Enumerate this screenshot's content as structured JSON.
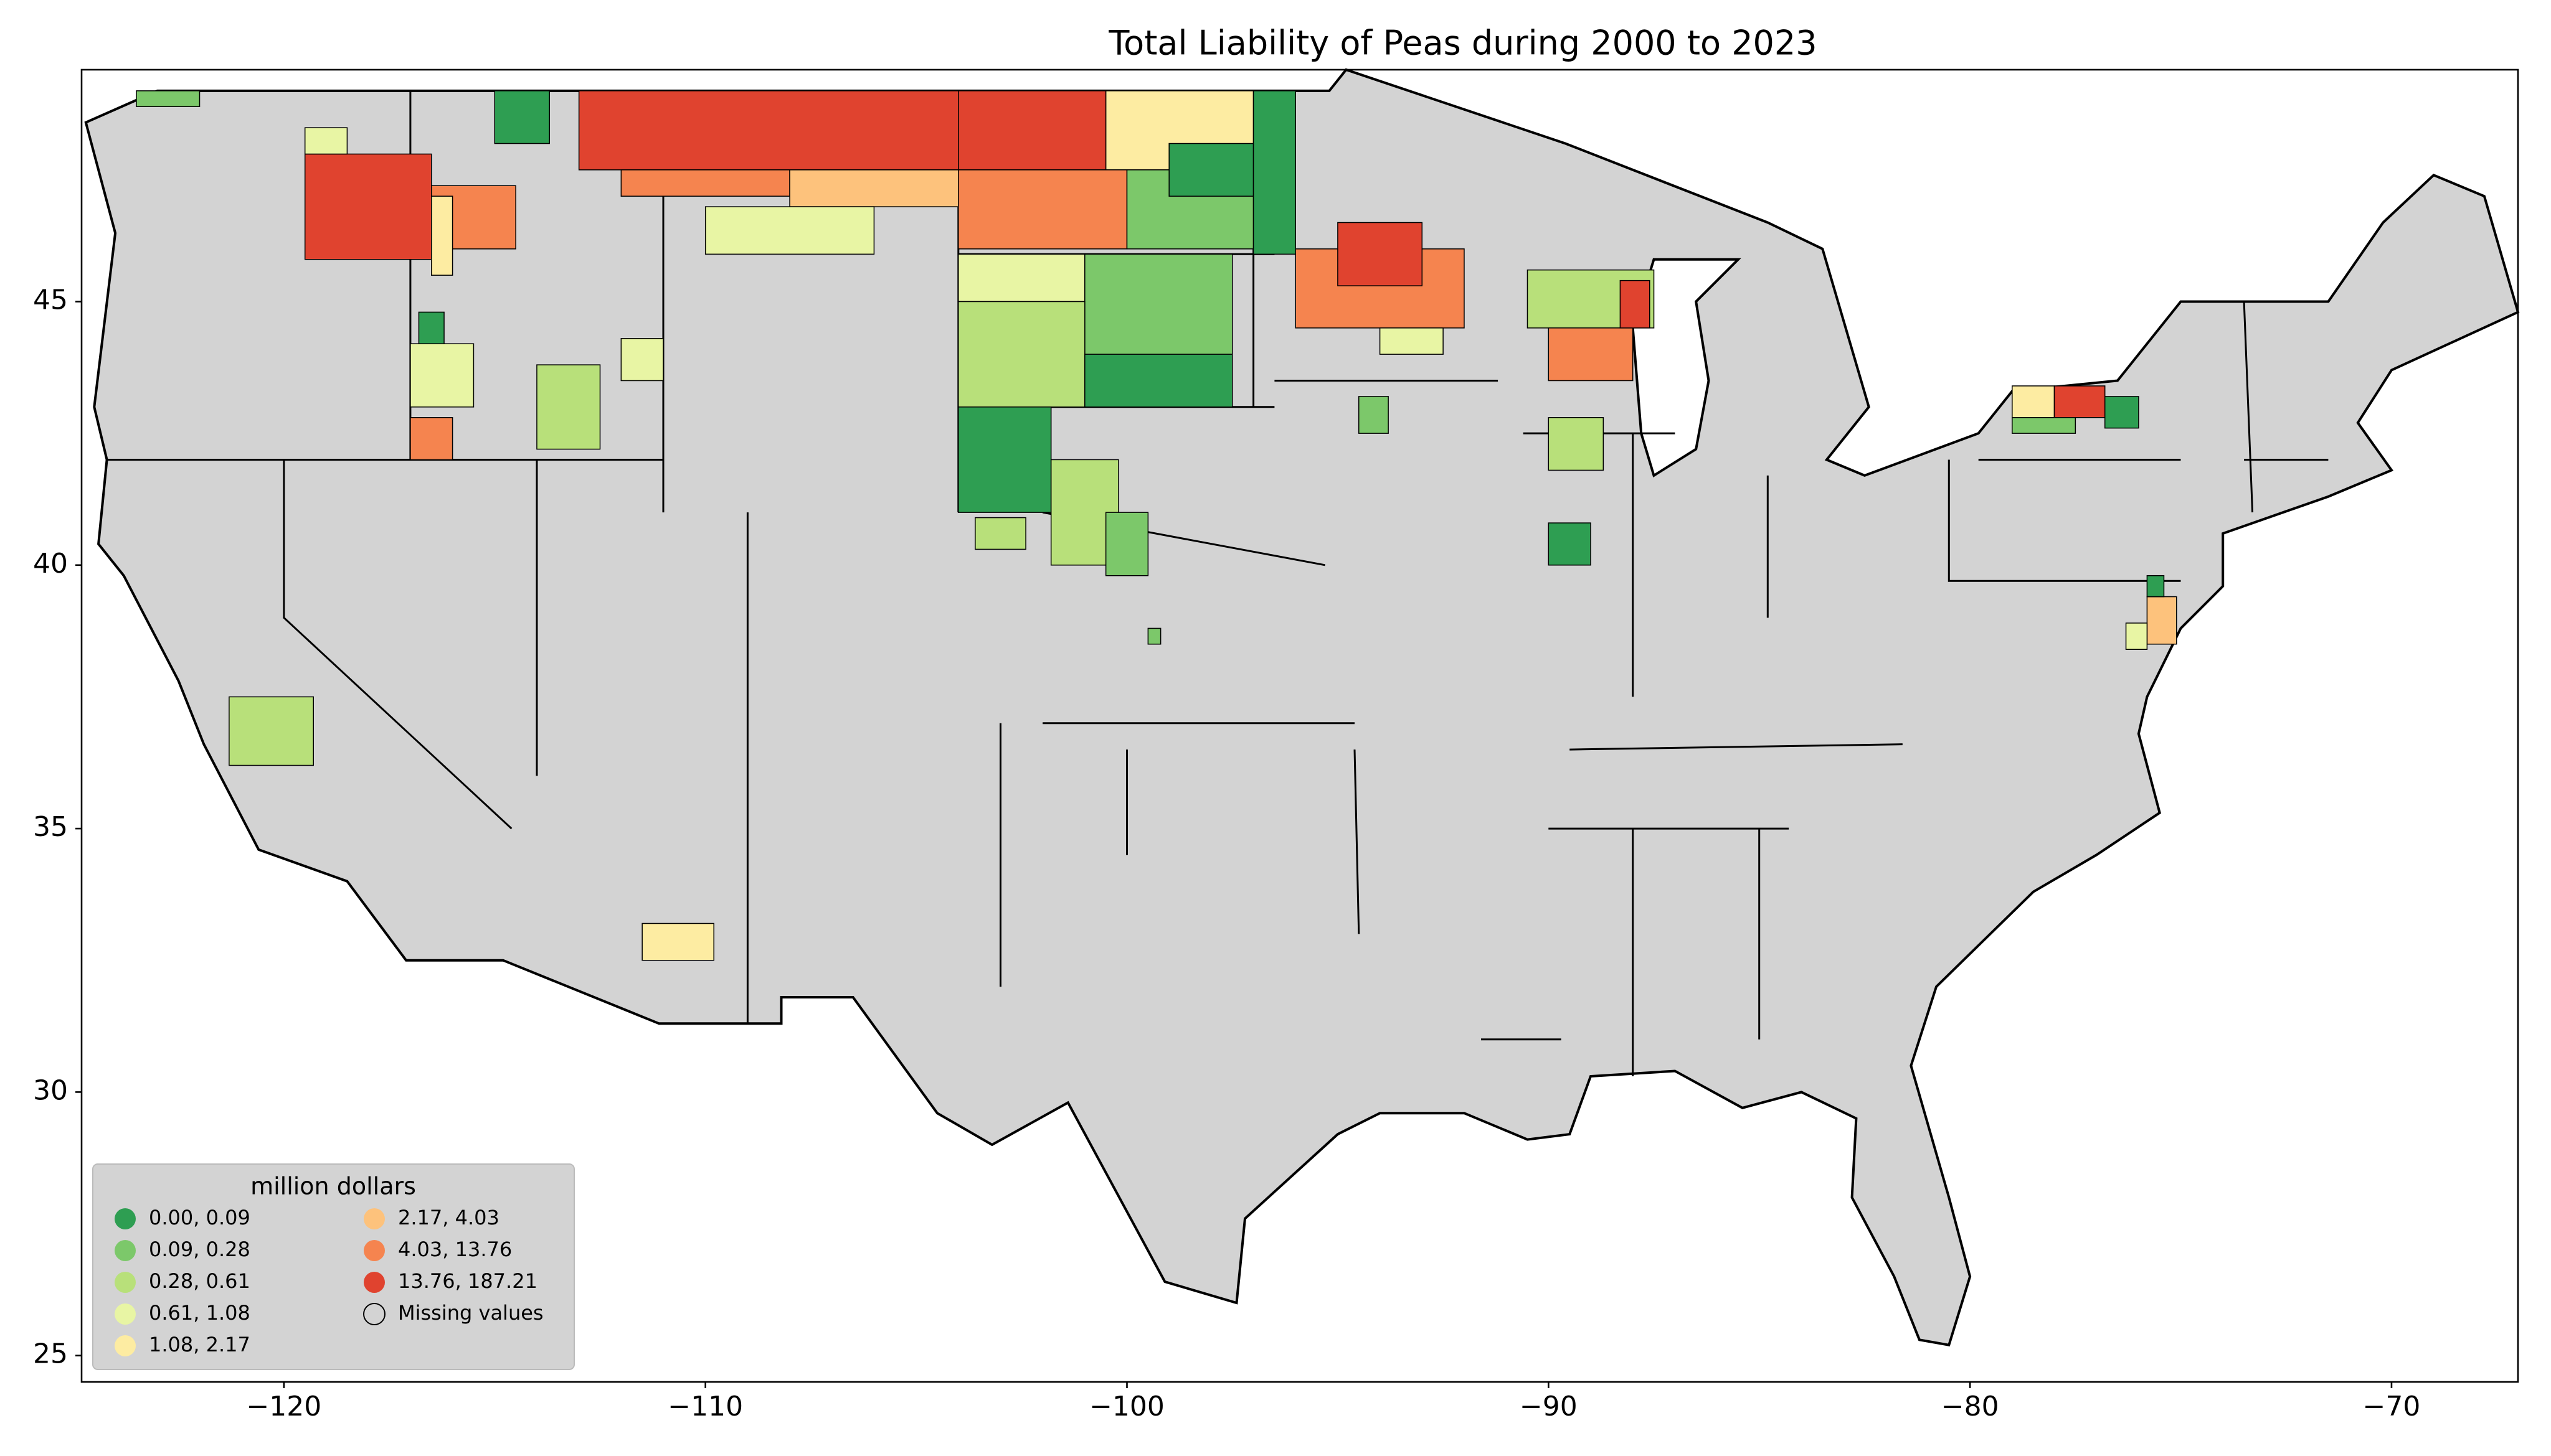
{
  "chart_data": {
    "type": "choropleth",
    "title": "Total Liability of Peas during 2000 to 2023",
    "xlim": [
      -124.8,
      -67.0
    ],
    "ylim": [
      24.5,
      49.4
    ],
    "xticks": [
      {
        "value": -120,
        "label": "−120"
      },
      {
        "value": -110,
        "label": "−110"
      },
      {
        "value": -100,
        "label": "−100"
      },
      {
        "value": -90,
        "label": "−90"
      },
      {
        "value": -80,
        "label": "−80"
      },
      {
        "value": -70,
        "label": "−70"
      }
    ],
    "yticks": [
      25,
      30,
      35,
      40,
      45
    ],
    "legend": {
      "title": "million dollars",
      "position": "lower left",
      "items": [
        {
          "label": "0.00,   0.09",
          "color": "#2e9e52"
        },
        {
          "label": "0.09,   0.28",
          "color": "#7cc86a"
        },
        {
          "label": "0.28,   0.61",
          "color": "#b8e07a"
        },
        {
          "label": "0.61,   1.08",
          "color": "#e8f5a4"
        },
        {
          "label": "1.08,   2.17",
          "color": "#fdeca2"
        },
        {
          "label": "2.17,   4.03",
          "color": "#fdc27c"
        },
        {
          "label": "4.03, 13.76",
          "color": "#f5844f"
        },
        {
          "label": "13.76, 187.21",
          "color": "#e0432f"
        }
      ],
      "missing": {
        "label": "Missing values",
        "color": "#d3d3d3"
      }
    }
  }
}
